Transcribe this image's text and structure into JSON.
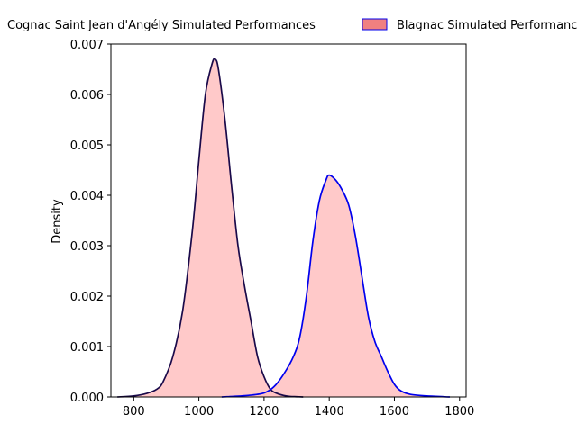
{
  "chart_data": {
    "type": "area",
    "xlabel": "",
    "ylabel": "Density",
    "xlim": [
      730,
      1820
    ],
    "ylim": [
      0,
      0.007
    ],
    "x_ticks": [
      800,
      1000,
      1200,
      1400,
      1600,
      1800
    ],
    "x_tick_labels": [
      "800",
      "1000",
      "1200",
      "1400",
      "1600",
      "1800"
    ],
    "y_ticks": [
      0,
      0.001,
      0.002,
      0.003,
      0.004,
      0.005,
      0.006,
      0.007
    ],
    "y_tick_labels": [
      "0.000",
      "0.001",
      "0.002",
      "0.003",
      "0.004",
      "0.005",
      "0.006",
      "0.007"
    ],
    "grid": false,
    "legend_position": "top",
    "series": [
      {
        "name": "Cognac Saint Jean d'Angély Simulated Performances",
        "line_color": "#1a0a4a",
        "fill_color": "#ffc0c0",
        "x": [
          750,
          800,
          840,
          870,
          890,
          920,
          950,
          980,
          1000,
          1020,
          1040,
          1050,
          1060,
          1080,
          1100,
          1120,
          1140,
          1160,
          1180,
          1200,
          1220,
          1240,
          1260,
          1280,
          1300,
          1320
        ],
        "y": [
          0.0,
          2e-05,
          7e-05,
          0.00015,
          0.0003,
          0.0008,
          0.0017,
          0.0033,
          0.0047,
          0.006,
          0.0066,
          0.0067,
          0.0065,
          0.0055,
          0.0042,
          0.003,
          0.0022,
          0.0015,
          0.0008,
          0.0004,
          0.00015,
          7e-05,
          3e-05,
          1e-05,
          5e-06,
          0.0
        ]
      },
      {
        "name": "Blagnac Simulated Performances",
        "line_color": "#0000ee",
        "fill_color": "#ffc0c0",
        "x": [
          1070,
          1150,
          1200,
          1230,
          1260,
          1290,
          1310,
          1330,
          1350,
          1370,
          1390,
          1400,
          1420,
          1440,
          1460,
          1480,
          1500,
          1520,
          1540,
          1560,
          1580,
          1600,
          1620,
          1650,
          1700,
          1770
        ],
        "y": [
          0.0,
          3e-05,
          8e-05,
          0.0002,
          0.00045,
          0.0008,
          0.0012,
          0.002,
          0.0031,
          0.0039,
          0.0043,
          0.0044,
          0.0043,
          0.0041,
          0.0038,
          0.0032,
          0.0024,
          0.0016,
          0.0011,
          0.0008,
          0.0005,
          0.00025,
          0.00012,
          5e-05,
          2e-05,
          0.0
        ]
      }
    ]
  }
}
